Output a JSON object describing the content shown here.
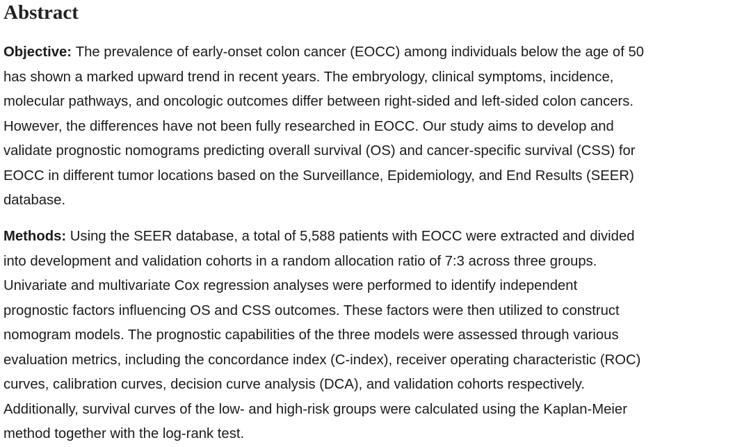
{
  "heading": "Abstract",
  "paragraphs": [
    {
      "label": "Objective:",
      "lines": [
        "The prevalence of early-onset colon cancer (EOCC) among individuals below the age of 50",
        "has shown a marked upward trend in recent years. The embryology, clinical symptoms, incidence,",
        "molecular pathways, and oncologic outcomes differ between right-sided and left-sided colon cancers.",
        "However, the differences have not been fully researched in EOCC. Our study aims to develop and",
        "validate prognostic nomograms predicting overall survival (OS) and cancer-specific survival (CSS) for",
        "EOCC in different tumor locations based on the Surveillance, Epidemiology, and End Results (SEER)",
        "database."
      ]
    },
    {
      "label": "Methods:",
      "lines": [
        "Using the SEER database, a total of 5,588 patients with EOCC were extracted and divided",
        "into development and validation cohorts in a random allocation ratio of 7:3 across three groups.",
        "Univariate and multivariate Cox regression analyses were performed to identify independent",
        "prognostic factors influencing OS and CSS outcomes. These factors were then utilized to construct",
        "nomogram models. The prognostic capabilities of the three models were assessed through various",
        "evaluation metrics, including the concordance index (C-index), receiver operating characteristic (ROC)",
        "curves, calibration curves, decision curve analysis (DCA), and validation cohorts respectively.",
        "Additionally, survival curves of the low- and high-risk groups were calculated using the Kaplan-Meier",
        "method together with the log-rank test."
      ]
    }
  ]
}
